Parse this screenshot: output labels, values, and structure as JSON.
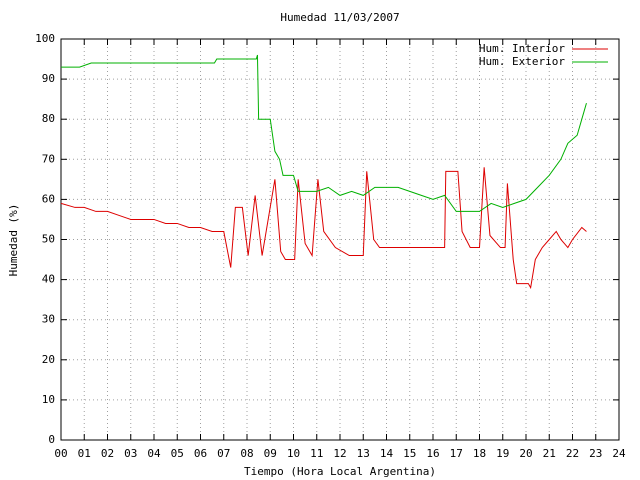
{
  "chart_data": {
    "type": "line",
    "title": "Humedad 11/03/2007",
    "x_label": "Tiempo (Hora Local Argentina)",
    "y_label": "Humedad (%)",
    "xlim": [
      0,
      24
    ],
    "ylim": [
      0,
      100
    ],
    "xticks": [
      {
        "value": 0,
        "label": "00"
      },
      {
        "value": 1,
        "label": "01"
      },
      {
        "value": 2,
        "label": "02"
      },
      {
        "value": 3,
        "label": "03"
      },
      {
        "value": 4,
        "label": "04"
      },
      {
        "value": 5,
        "label": "05"
      },
      {
        "value": 6,
        "label": "06"
      },
      {
        "value": 7,
        "label": "07"
      },
      {
        "value": 8,
        "label": "08"
      },
      {
        "value": 9,
        "label": "09"
      },
      {
        "value": 10,
        "label": "10"
      },
      {
        "value": 11,
        "label": "11"
      },
      {
        "value": 12,
        "label": "12"
      },
      {
        "value": 13,
        "label": "13"
      },
      {
        "value": 14,
        "label": "14"
      },
      {
        "value": 15,
        "label": "15"
      },
      {
        "value": 16,
        "label": "16"
      },
      {
        "value": 17,
        "label": "17"
      },
      {
        "value": 18,
        "label": "18"
      },
      {
        "value": 19,
        "label": "19"
      },
      {
        "value": 20,
        "label": "20"
      },
      {
        "value": 21,
        "label": "21"
      },
      {
        "value": 22,
        "label": "22"
      },
      {
        "value": 23,
        "label": "23"
      },
      {
        "value": 24,
        "label": "24"
      }
    ],
    "yticks": [
      0,
      10,
      20,
      30,
      40,
      50,
      60,
      70,
      80,
      90,
      100
    ],
    "grid": true,
    "legend": "top-right",
    "series": [
      {
        "name": "Hum. Interior",
        "color": "#dd0000",
        "x": [
          0,
          0.6,
          1,
          1.5,
          2,
          2.5,
          3,
          3.5,
          4,
          4.5,
          5,
          5.5,
          6,
          6.5,
          7.0,
          7.3,
          7.5,
          7.8,
          8.05,
          8.35,
          8.65,
          9.2,
          9.45,
          9.65,
          10.05,
          10.2,
          10.5,
          10.8,
          11.05,
          11.3,
          11.8,
          12.4,
          13.0,
          13.15,
          13.45,
          13.7,
          16.5,
          16.55,
          17.07,
          17.25,
          17.6,
          18.0,
          18.2,
          18.45,
          18.9,
          19.1,
          19.2,
          19.45,
          19.6,
          20.1,
          20.2,
          20.4,
          20.7,
          21.0,
          21.3,
          21.5,
          21.8,
          22.0,
          22.4,
          22.6
        ],
        "values": [
          59,
          58,
          58,
          57,
          57,
          56,
          55,
          55,
          55,
          54,
          54,
          53,
          53,
          52,
          52,
          43,
          58,
          58,
          46,
          61,
          46,
          65,
          47,
          45,
          45,
          65,
          49,
          46,
          65,
          52,
          48,
          46,
          46,
          67,
          50,
          48,
          48,
          67,
          67,
          52,
          48,
          48,
          68,
          51,
          48,
          48,
          64,
          45,
          39,
          39,
          38,
          45,
          48,
          50,
          52,
          50,
          48,
          50,
          53,
          52
        ]
      },
      {
        "name": "Hum. Exterior",
        "color": "#00b000",
        "x": [
          0,
          0.8,
          1.3,
          6.6,
          6.7,
          8.4,
          8.45,
          8.5,
          9.0,
          9.2,
          9.4,
          9.55,
          10.0,
          10.2,
          11,
          11.5,
          12,
          12.5,
          13,
          13.5,
          14,
          14.5,
          15,
          15.5,
          16,
          16.5,
          17,
          17.5,
          18,
          18.5,
          19,
          19.5,
          20,
          20.5,
          21,
          21.5,
          21.8,
          22.2,
          22.5,
          22.6
        ],
        "values": [
          93,
          93,
          94,
          94,
          95,
          95,
          96,
          80,
          80,
          72,
          70,
          66,
          66,
          62,
          62,
          63,
          61,
          62,
          61,
          63,
          63,
          63,
          62,
          61,
          60,
          61,
          57,
          57,
          57,
          59,
          58,
          59,
          60,
          63,
          66,
          70,
          74,
          76,
          82,
          84
        ]
      }
    ]
  }
}
